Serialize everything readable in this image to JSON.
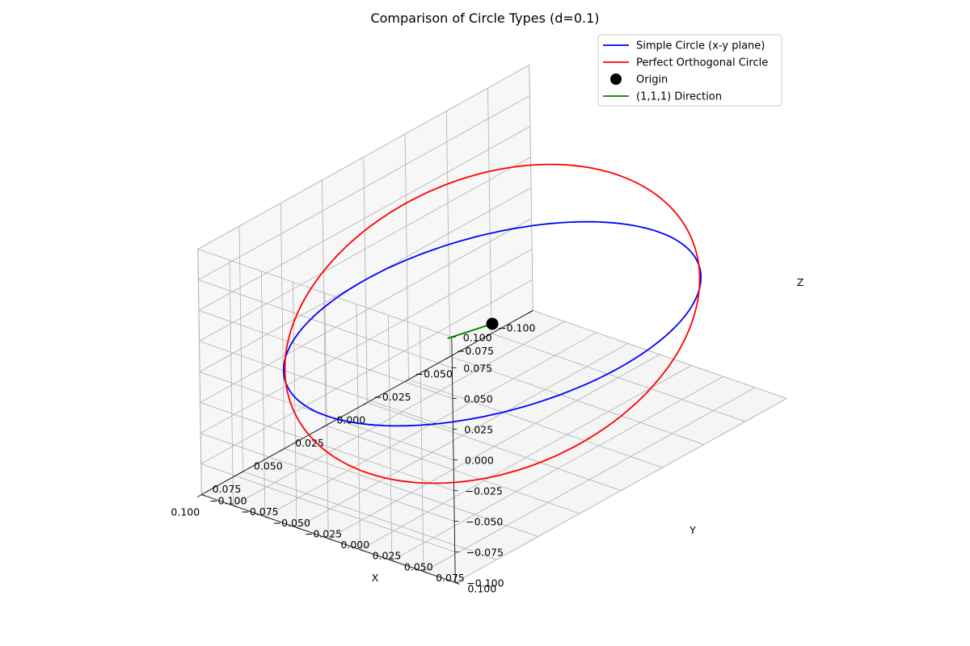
{
  "chart_data": {
    "type": "line3d",
    "title": "Comparison of Circle Types (d=0.1)",
    "xlabel": "X",
    "ylabel": "Y",
    "zlabel": "Z",
    "xlim": [
      -0.1,
      0.1
    ],
    "ylim": [
      -0.1,
      0.1
    ],
    "zlim": [
      -0.1,
      0.1
    ],
    "ticks": {
      "x": [
        "−0.100",
        "−0.075",
        "−0.050",
        "−0.025",
        "0.000",
        "0.025",
        "0.050",
        "0.075",
        "0.100"
      ],
      "y": [
        "−0.100",
        "−0.075",
        "−0.050",
        "−0.025",
        "0.000",
        "0.025",
        "0.050",
        "0.075",
        "0.100"
      ],
      "z": [
        "−0.100",
        "−0.075",
        "−0.050",
        "−0.025",
        "0.000",
        "0.025",
        "0.050",
        "0.075",
        "0.100"
      ]
    },
    "tick_values": [
      -0.1,
      -0.075,
      -0.05,
      -0.025,
      0,
      0.025,
      0.05,
      0.075,
      0.1
    ],
    "grid": true,
    "legend_position": "top-right",
    "series": [
      {
        "name": "Simple Circle (x-y plane)",
        "kind": "circle",
        "color": "#0000ff",
        "center": [
          0,
          0,
          0
        ],
        "radius": 0.1,
        "normal": [
          0,
          0,
          1
        ]
      },
      {
        "name": "Perfect Orthogonal Circle",
        "kind": "circle",
        "color": "#ff0000",
        "center": [
          0,
          0,
          0
        ],
        "radius": 0.1,
        "normal": [
          1,
          1,
          1
        ]
      },
      {
        "name": "Origin",
        "kind": "point",
        "color": "#000000",
        "point": [
          0,
          0,
          0
        ]
      },
      {
        "name": "(1,1,1) Direction",
        "kind": "line",
        "color": "#008000",
        "from": [
          0,
          0,
          0
        ],
        "to": [
          0.1,
          0.1,
          0.1
        ]
      }
    ]
  }
}
